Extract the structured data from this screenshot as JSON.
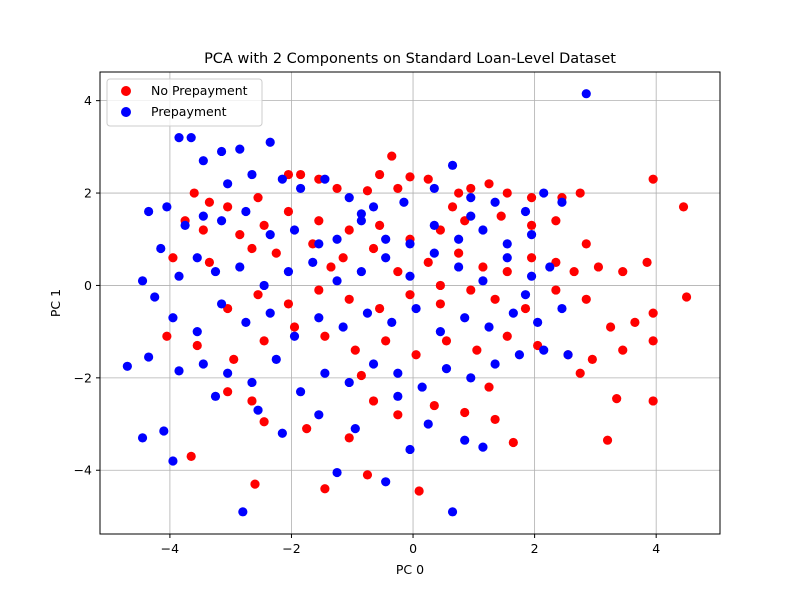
{
  "chart_data": {
    "type": "scatter",
    "title": "PCA with 2 Components on Standard Loan-Level Dataset",
    "xlabel": "PC 0",
    "ylabel": "PC 1",
    "xlim": [
      -5.15,
      5.05
    ],
    "ylim": [
      -5.38,
      4.62
    ],
    "xticks": [
      -4,
      -2,
      0,
      2,
      4
    ],
    "yticks": [
      -4,
      -2,
      0,
      2,
      4
    ],
    "xtick_labels": [
      "−4",
      "−2",
      "0",
      "2",
      "4"
    ],
    "ytick_labels": [
      "−4",
      "−2",
      "0",
      "2",
      "4"
    ],
    "grid": true,
    "legend": "top-left",
    "series": [
      {
        "name": "No Prepayment",
        "color": "#ff0000",
        "points": [
          [
            -3.65,
            -3.7
          ],
          [
            -2.6,
            -4.3
          ],
          [
            -1.45,
            -4.4
          ],
          [
            -0.75,
            -4.1
          ],
          [
            0.1,
            -4.45
          ],
          [
            -3.6,
            2.0
          ],
          [
            -3.35,
            1.8
          ],
          [
            -3.05,
            1.7
          ],
          [
            -2.55,
            1.9
          ],
          [
            -2.05,
            2.4
          ],
          [
            -1.85,
            2.4
          ],
          [
            -1.55,
            2.3
          ],
          [
            -1.25,
            2.1
          ],
          [
            -0.75,
            2.05
          ],
          [
            -0.55,
            2.4
          ],
          [
            -0.25,
            2.1
          ],
          [
            -0.05,
            2.35
          ],
          [
            0.25,
            2.3
          ],
          [
            0.75,
            2.0
          ],
          [
            0.95,
            2.1
          ],
          [
            1.25,
            2.2
          ],
          [
            1.55,
            2.0
          ],
          [
            1.95,
            1.9
          ],
          [
            2.45,
            1.9
          ],
          [
            2.75,
            2.0
          ],
          [
            3.95,
            2.3
          ],
          [
            4.45,
            1.7
          ],
          [
            -3.75,
            1.4
          ],
          [
            -3.45,
            1.2
          ],
          [
            -2.85,
            1.1
          ],
          [
            -2.45,
            1.3
          ],
          [
            -2.05,
            1.6
          ],
          [
            -1.55,
            1.4
          ],
          [
            -1.05,
            1.2
          ],
          [
            -0.55,
            1.3
          ],
          [
            -0.05,
            1.0
          ],
          [
            0.45,
            1.2
          ],
          [
            0.85,
            1.4
          ],
          [
            1.45,
            1.5
          ],
          [
            1.95,
            1.3
          ],
          [
            2.35,
            1.4
          ],
          [
            2.85,
            0.9
          ],
          [
            -3.95,
            0.6
          ],
          [
            -3.35,
            0.5
          ],
          [
            -2.65,
            0.8
          ],
          [
            -2.25,
            0.7
          ],
          [
            -1.65,
            0.9
          ],
          [
            -1.15,
            0.6
          ],
          [
            -0.65,
            0.8
          ],
          [
            -0.25,
            0.3
          ],
          [
            0.25,
            0.5
          ],
          [
            0.75,
            0.7
          ],
          [
            1.15,
            0.4
          ],
          [
            1.55,
            0.3
          ],
          [
            1.95,
            0.6
          ],
          [
            2.35,
            0.5
          ],
          [
            2.65,
            0.3
          ],
          [
            3.05,
            0.4
          ],
          [
            3.45,
            0.3
          ],
          [
            3.85,
            0.5
          ],
          [
            -3.05,
            -0.5
          ],
          [
            -2.55,
            -0.2
          ],
          [
            -2.05,
            -0.4
          ],
          [
            -1.55,
            -0.1
          ],
          [
            -1.05,
            -0.3
          ],
          [
            -0.55,
            -0.5
          ],
          [
            -0.05,
            -0.2
          ],
          [
            0.45,
            -0.4
          ],
          [
            0.95,
            -0.1
          ],
          [
            1.35,
            -0.3
          ],
          [
            1.85,
            -0.5
          ],
          [
            2.35,
            -0.1
          ],
          [
            2.85,
            -0.3
          ],
          [
            3.25,
            -0.9
          ],
          [
            3.65,
            -0.8
          ],
          [
            3.95,
            -0.6
          ],
          [
            4.5,
            -0.25
          ],
          [
            -4.05,
            -1.1
          ],
          [
            -3.55,
            -1.3
          ],
          [
            -2.95,
            -1.6
          ],
          [
            -2.45,
            -1.2
          ],
          [
            -1.95,
            -0.9
          ],
          [
            -1.45,
            -1.1
          ],
          [
            -0.95,
            -1.4
          ],
          [
            -0.45,
            -1.2
          ],
          [
            0.05,
            -1.5
          ],
          [
            0.55,
            -1.2
          ],
          [
            1.05,
            -1.4
          ],
          [
            1.55,
            -1.1
          ],
          [
            2.05,
            -1.3
          ],
          [
            2.55,
            -1.5
          ],
          [
            2.95,
            -1.6
          ],
          [
            3.45,
            -1.4
          ],
          [
            3.95,
            -1.2
          ],
          [
            -3.05,
            -2.3
          ],
          [
            -2.65,
            -2.5
          ],
          [
            -2.45,
            -2.95
          ],
          [
            -1.75,
            -3.1
          ],
          [
            -1.05,
            -3.3
          ],
          [
            -0.65,
            -2.5
          ],
          [
            -0.25,
            -2.8
          ],
          [
            0.35,
            -2.6
          ],
          [
            0.85,
            -2.75
          ],
          [
            1.35,
            -2.9
          ],
          [
            1.65,
            -3.4
          ],
          [
            3.2,
            -3.35
          ],
          [
            3.35,
            -2.45
          ],
          [
            3.95,
            -2.5
          ],
          [
            -0.85,
            -1.95
          ],
          [
            1.25,
            -2.2
          ],
          [
            2.75,
            -1.9
          ],
          [
            0.45,
            0.0
          ],
          [
            -1.35,
            0.4
          ],
          [
            -0.35,
            2.8
          ],
          [
            0.65,
            1.7
          ]
        ]
      },
      {
        "name": "Prepayment",
        "color": "#0000ff",
        "points": [
          [
            -4.7,
            -1.75
          ],
          [
            -4.45,
            -3.3
          ],
          [
            -4.1,
            -3.15
          ],
          [
            -3.95,
            -3.8
          ],
          [
            -2.8,
            -4.9
          ],
          [
            -1.25,
            -4.05
          ],
          [
            -0.45,
            -4.25
          ],
          [
            0.65,
            -4.9
          ],
          [
            2.85,
            4.15
          ],
          [
            -3.85,
            3.2
          ],
          [
            -3.65,
            3.2
          ],
          [
            -3.45,
            2.7
          ],
          [
            -3.15,
            2.9
          ],
          [
            -2.85,
            2.95
          ],
          [
            -2.35,
            3.1
          ],
          [
            -2.65,
            2.4
          ],
          [
            -2.15,
            2.3
          ],
          [
            -1.85,
            2.1
          ],
          [
            -1.45,
            2.3
          ],
          [
            -1.05,
            1.9
          ],
          [
            -0.65,
            1.7
          ],
          [
            -0.15,
            1.8
          ],
          [
            0.35,
            2.1
          ],
          [
            0.65,
            2.6
          ],
          [
            0.95,
            1.9
          ],
          [
            1.35,
            1.8
          ],
          [
            1.85,
            1.6
          ],
          [
            2.15,
            2.0
          ],
          [
            2.45,
            1.8
          ],
          [
            -4.35,
            1.6
          ],
          [
            -4.05,
            1.7
          ],
          [
            -3.75,
            1.3
          ],
          [
            -3.45,
            1.5
          ],
          [
            -3.15,
            1.4
          ],
          [
            -2.75,
            1.6
          ],
          [
            -2.35,
            1.1
          ],
          [
            -1.95,
            1.2
          ],
          [
            -1.55,
            0.9
          ],
          [
            -1.25,
            1.0
          ],
          [
            -0.85,
            1.4
          ],
          [
            -0.45,
            1.0
          ],
          [
            -0.05,
            0.9
          ],
          [
            0.35,
            1.3
          ],
          [
            0.75,
            1.0
          ],
          [
            1.15,
            1.2
          ],
          [
            1.55,
            0.9
          ],
          [
            1.95,
            1.1
          ],
          [
            -4.15,
            0.8
          ],
          [
            -3.85,
            0.2
          ],
          [
            -3.55,
            0.6
          ],
          [
            -3.25,
            0.3
          ],
          [
            -2.85,
            0.4
          ],
          [
            -2.45,
            0.0
          ],
          [
            -2.05,
            0.3
          ],
          [
            -1.65,
            0.5
          ],
          [
            -1.25,
            0.1
          ],
          [
            -0.85,
            0.3
          ],
          [
            -0.45,
            0.6
          ],
          [
            -0.05,
            0.2
          ],
          [
            0.35,
            0.7
          ],
          [
            0.75,
            0.4
          ],
          [
            1.15,
            0.1
          ],
          [
            1.55,
            0.6
          ],
          [
            1.95,
            0.2
          ],
          [
            2.25,
            0.4
          ],
          [
            -4.45,
            0.1
          ],
          [
            -4.25,
            -0.25
          ],
          [
            -3.95,
            -0.7
          ],
          [
            -3.55,
            -1.0
          ],
          [
            -3.15,
            -0.4
          ],
          [
            -2.75,
            -0.8
          ],
          [
            -2.35,
            -0.6
          ],
          [
            -1.95,
            -1.1
          ],
          [
            -1.55,
            -0.7
          ],
          [
            -1.15,
            -0.9
          ],
          [
            -0.75,
            -0.6
          ],
          [
            -0.35,
            -0.8
          ],
          [
            0.05,
            -0.5
          ],
          [
            0.45,
            -1.0
          ],
          [
            0.85,
            -0.7
          ],
          [
            1.25,
            -0.9
          ],
          [
            1.65,
            -0.6
          ],
          [
            2.05,
            -0.8
          ],
          [
            2.45,
            -0.5
          ],
          [
            -4.35,
            -1.55
          ],
          [
            -3.85,
            -1.85
          ],
          [
            -3.45,
            -1.7
          ],
          [
            -3.05,
            -1.9
          ],
          [
            -2.65,
            -2.1
          ],
          [
            -2.25,
            -1.6
          ],
          [
            -1.85,
            -2.3
          ],
          [
            -1.45,
            -1.9
          ],
          [
            -1.05,
            -2.1
          ],
          [
            -0.65,
            -1.7
          ],
          [
            -0.25,
            -1.9
          ],
          [
            0.15,
            -2.2
          ],
          [
            0.55,
            -1.8
          ],
          [
            0.95,
            -2.0
          ],
          [
            1.35,
            -1.7
          ],
          [
            1.75,
            -1.5
          ],
          [
            2.15,
            -1.4
          ],
          [
            2.55,
            -1.5
          ],
          [
            -3.25,
            -2.4
          ],
          [
            -2.55,
            -2.7
          ],
          [
            -2.15,
            -3.2
          ],
          [
            -1.55,
            -2.8
          ],
          [
            -0.95,
            -3.1
          ],
          [
            -0.25,
            -2.4
          ],
          [
            0.25,
            -3.0
          ],
          [
            0.85,
            -3.35
          ],
          [
            1.15,
            -3.5
          ],
          [
            -0.05,
            -3.55
          ],
          [
            -3.05,
            2.2
          ],
          [
            -0.85,
            1.55
          ],
          [
            0.95,
            1.5
          ],
          [
            1.85,
            -0.2
          ]
        ]
      }
    ]
  }
}
